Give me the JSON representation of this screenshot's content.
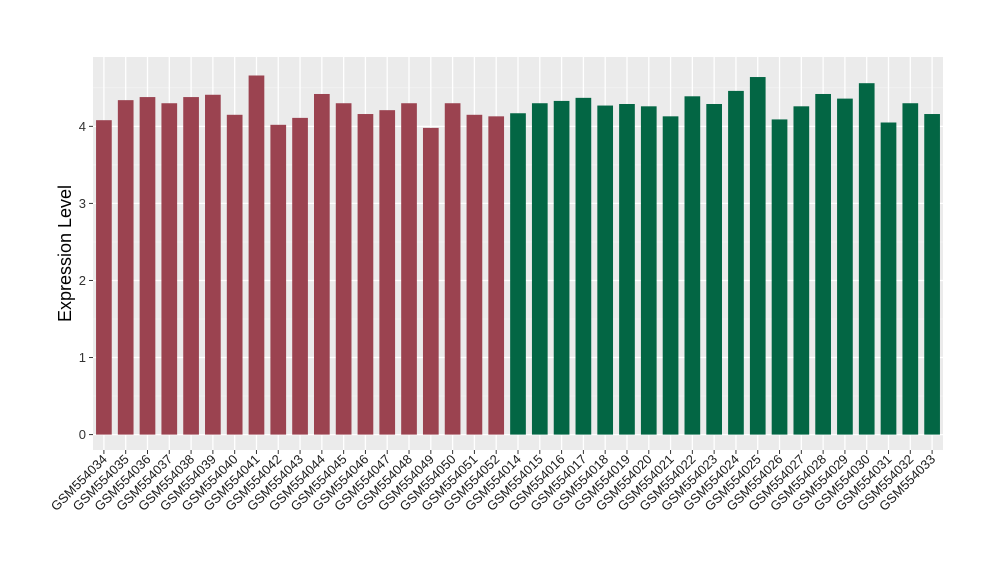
{
  "chart_data": {
    "type": "bar",
    "title": "",
    "xlabel": "",
    "ylabel": "Expression Level",
    "ylim": [
      -0.2,
      4.9
    ],
    "yticks": [
      0,
      1,
      2,
      3,
      4
    ],
    "grid": true,
    "legend": "none",
    "background": "#ebebeb",
    "categories": [
      "GSM554034",
      "GSM554035",
      "GSM554036",
      "GSM554037",
      "GSM554038",
      "GSM554039",
      "GSM554040",
      "GSM554041",
      "GSM554042",
      "GSM554043",
      "GSM554044",
      "GSM554045",
      "GSM554046",
      "GSM554047",
      "GSM554048",
      "GSM554049",
      "GSM554050",
      "GSM554051",
      "GSM554052",
      "GSM554014",
      "GSM554015",
      "GSM554016",
      "GSM554017",
      "GSM554018",
      "GSM554019",
      "GSM554020",
      "GSM554021",
      "GSM554022",
      "GSM554023",
      "GSM554024",
      "GSM554025",
      "GSM554026",
      "GSM554027",
      "GSM554028",
      "GSM554029",
      "GSM554030",
      "GSM554031",
      "GSM554032",
      "GSM554033"
    ],
    "values": [
      4.08,
      4.34,
      4.38,
      4.3,
      4.38,
      4.41,
      4.15,
      4.66,
      4.02,
      4.11,
      4.42,
      4.3,
      4.16,
      4.21,
      4.3,
      3.98,
      4.3,
      4.15,
      4.13,
      4.17,
      4.3,
      4.33,
      4.37,
      4.27,
      4.29,
      4.26,
      4.13,
      4.39,
      4.29,
      4.46,
      4.64,
      4.09,
      4.26,
      4.42,
      4.36,
      4.56,
      4.05,
      4.3,
      4.16
    ],
    "group_sizes": [
      19,
      20
    ],
    "colors": [
      "#9b4350",
      "#036644"
    ]
  }
}
